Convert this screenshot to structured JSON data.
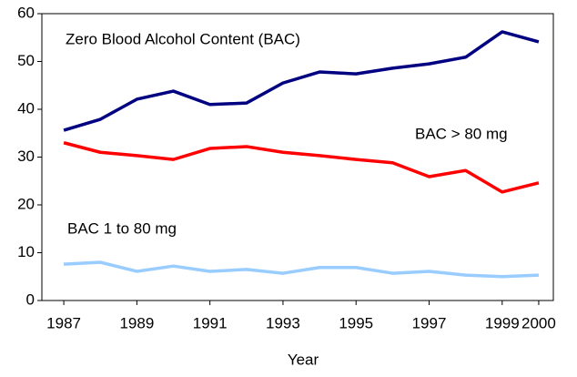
{
  "chart_data": {
    "type": "line",
    "x_label": "Year",
    "x": [
      1987,
      1988,
      1989,
      1990,
      1991,
      1992,
      1993,
      1994,
      1995,
      1996,
      1997,
      1998,
      1999,
      2000
    ],
    "xlim": [
      1986.4,
      2000.4
    ],
    "xticks": [
      1987,
      1989,
      1991,
      1993,
      1995,
      1997,
      1999,
      2000
    ],
    "ylim": [
      0,
      60
    ],
    "yticks": [
      0,
      10,
      20,
      30,
      40,
      50,
      60
    ],
    "series": [
      {
        "name": "Zero Blood Alcohol Content (BAC)",
        "color": "#000080",
        "values": [
          35.6,
          37.9,
          42.1,
          43.8,
          41.0,
          41.3,
          45.5,
          47.8,
          47.4,
          48.6,
          49.5,
          50.9,
          56.2,
          54.1
        ]
      },
      {
        "name": "BAC > 80 mg",
        "color": "#ff0000",
        "values": [
          33.0,
          31.0,
          30.3,
          29.5,
          31.8,
          32.2,
          31.0,
          30.3,
          29.5,
          28.8,
          25.9,
          27.2,
          22.7,
          24.6
        ]
      },
      {
        "name": "BAC 1 to 80 mg",
        "color": "#99ccff",
        "values": [
          7.6,
          8.0,
          6.1,
          7.2,
          6.1,
          6.5,
          5.7,
          6.9,
          6.9,
          5.7,
          6.1,
          5.3,
          5.0,
          5.3
        ]
      }
    ]
  }
}
